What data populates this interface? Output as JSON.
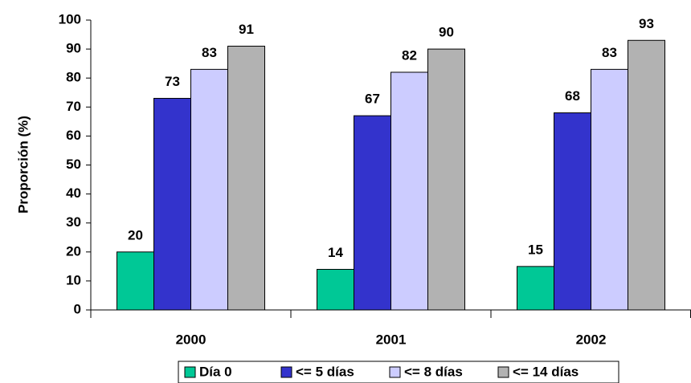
{
  "chart_data": {
    "type": "bar",
    "y_label": "Proporción (%)",
    "categories": [
      "2000",
      "2001",
      "2002"
    ],
    "series": [
      {
        "name": "Día 0",
        "color": "#00c896",
        "values": [
          20,
          14,
          15
        ]
      },
      {
        "name": "<= 5 días",
        "color": "#3333cc",
        "values": [
          73,
          67,
          68
        ]
      },
      {
        "name": "<= 8 días",
        "color": "#ccccff",
        "values": [
          83,
          82,
          83
        ]
      },
      {
        "name": "<= 14 días",
        "color": "#b2b2b2",
        "values": [
          91,
          90,
          93
        ]
      }
    ],
    "ylim": [
      0,
      100
    ],
    "yticks": [
      0,
      10,
      20,
      30,
      40,
      50,
      60,
      70,
      80,
      90,
      100
    ],
    "grid": false,
    "legend": "bottom"
  }
}
